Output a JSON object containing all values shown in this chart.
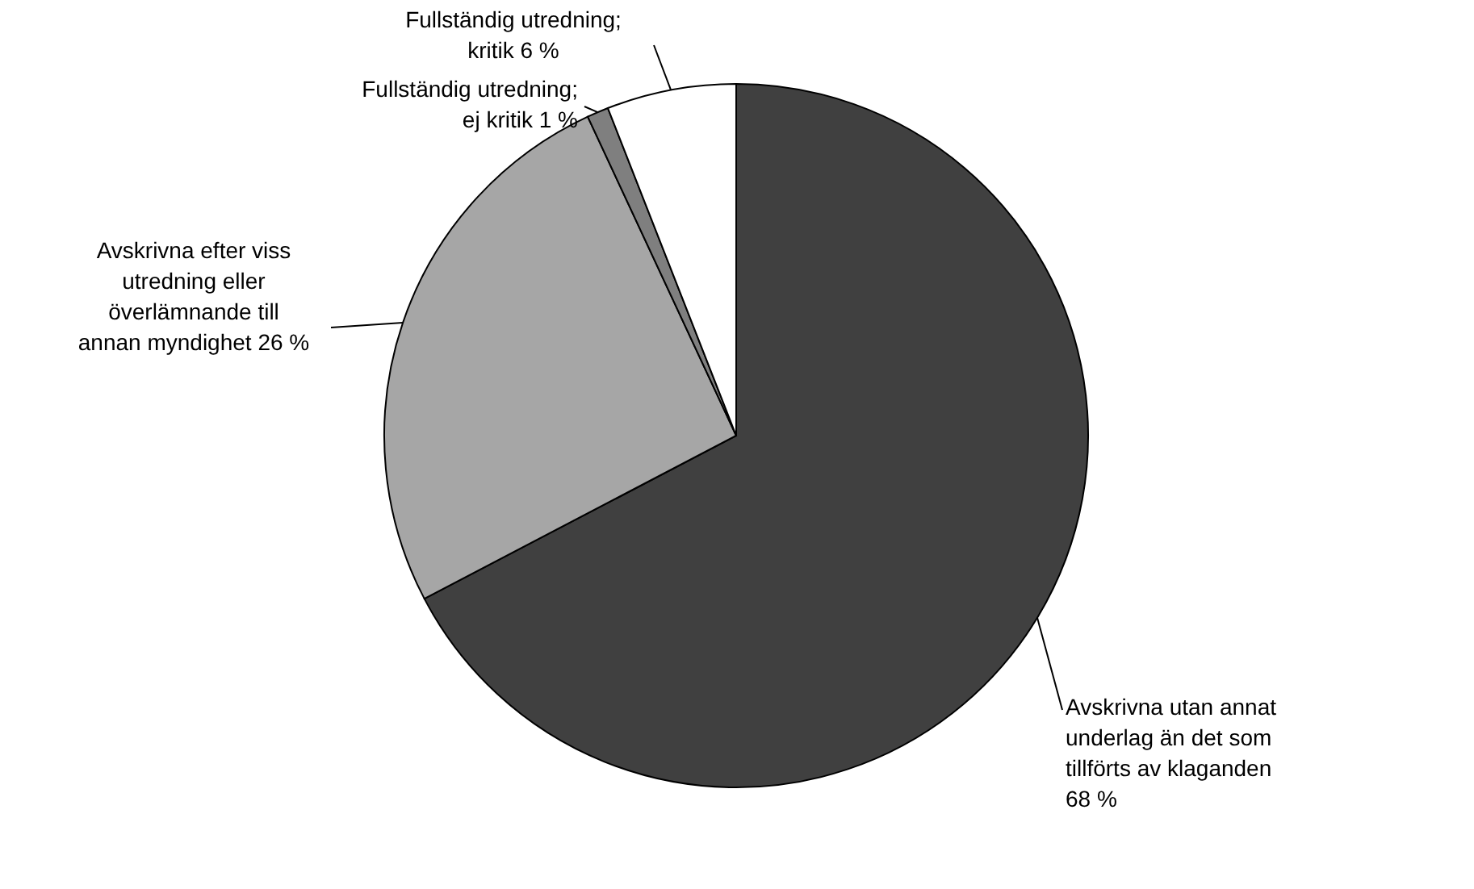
{
  "chart_data": {
    "type": "pie",
    "categories": [
      "Avskrivna utan annat underlag än det som tillförts av klaganden",
      "Avskrivna efter viss utredning eller överlämnande till annan myndighet",
      "Fullständig utredning; ej kritik",
      "Fullständig utredning; kritik"
    ],
    "values": [
      68,
      26,
      1,
      6
    ],
    "value_labels": [
      "68 %",
      "26 %",
      "1 %",
      "6 %"
    ],
    "colors": [
      "#404040",
      "#a6a6a6",
      "#7f7f7f",
      "#ffffff"
    ],
    "legend": false
  }
}
